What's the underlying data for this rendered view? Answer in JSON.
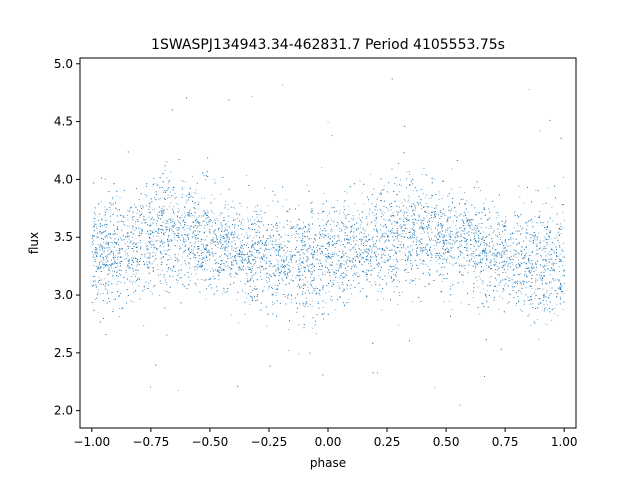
{
  "chart_data": {
    "type": "scatter",
    "title": "1SWASPJ134943.34-462831.7 Period 4105553.75s",
    "xlabel": "phase",
    "ylabel": "flux",
    "xlim": [
      -1.05,
      1.05
    ],
    "ylim": [
      1.85,
      5.05
    ],
    "xticks": [
      -1.0,
      -0.75,
      -0.5,
      -0.25,
      0.0,
      0.25,
      0.5,
      0.75,
      1.0
    ],
    "xtick_labels": [
      "−1.00",
      "−0.75",
      "−0.50",
      "−0.25",
      "0.00",
      "0.25",
      "0.50",
      "0.75",
      "1.00"
    ],
    "yticks": [
      2.0,
      2.5,
      3.0,
      3.5,
      4.0,
      4.5,
      5.0
    ],
    "ytick_labels": [
      "2.0",
      "2.5",
      "3.0",
      "3.5",
      "4.0",
      "4.5",
      "5.0"
    ],
    "grid": false,
    "point_color": "#1f77b4",
    "series": [
      {
        "phase_range": [
          -1.0,
          1.0
        ],
        "flux_profile": {
          "phase": [
            0.0,
            0.05,
            0.1,
            0.15,
            0.2,
            0.25,
            0.3,
            0.35,
            0.4,
            0.45,
            0.5,
            0.55,
            0.6,
            0.65,
            0.7,
            0.75,
            0.8,
            0.85,
            0.9,
            0.95,
            1.0
          ],
          "median_flux": [
            3.3,
            3.35,
            3.4,
            3.42,
            3.45,
            3.5,
            3.55,
            3.58,
            3.55,
            3.5,
            3.45,
            3.45,
            3.42,
            3.38,
            3.35,
            3.33,
            3.3,
            3.28,
            3.3,
            3.28,
            3.3
          ],
          "upper_envelope": [
            3.9,
            3.95,
            4.0,
            4.05,
            4.05,
            4.1,
            4.3,
            4.2,
            4.1,
            4.0,
            3.95,
            3.9,
            3.85,
            3.85,
            3.9,
            3.85,
            3.85,
            3.85,
            3.9,
            3.95,
            4.0
          ],
          "lower_envelope": [
            2.7,
            2.8,
            2.85,
            2.9,
            2.9,
            2.95,
            3.0,
            3.0,
            2.95,
            2.9,
            2.85,
            2.85,
            2.85,
            2.8,
            2.8,
            2.8,
            2.75,
            2.7,
            2.7,
            2.7,
            2.7
          ]
        },
        "outlier_range": [
          2.0,
          4.9
        ]
      }
    ]
  }
}
